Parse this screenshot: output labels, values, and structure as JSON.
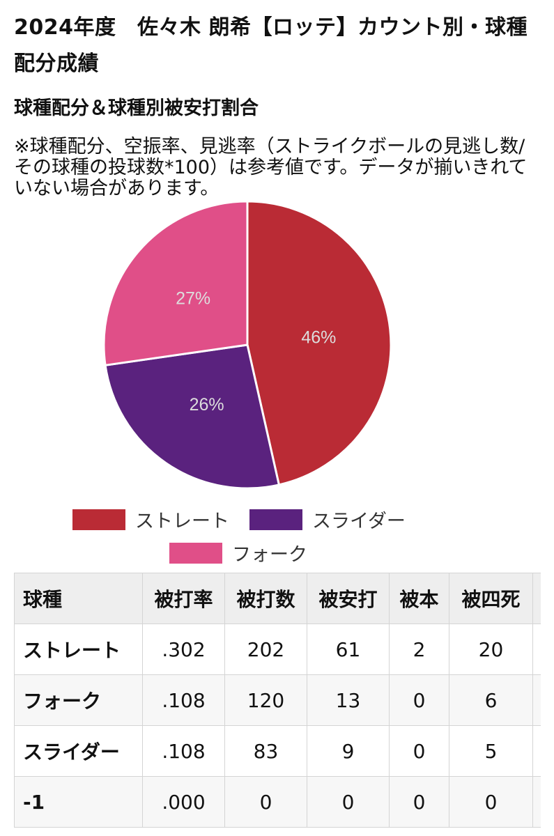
{
  "title": "2024年度　佐々木 朗希【ロッテ】カウント別・球種配分成績",
  "section_title": "球種配分＆球種別被安打割合",
  "note": "※球種配分、空振率、見逃率（ストライクボールの見逃し数/その球種の投球数*100）は参考値です。データが揃いきれていない場合があります。",
  "chart_data": {
    "type": "pie",
    "title": "",
    "slices": [
      {
        "name": "ストレート",
        "value": 46,
        "label": "46%",
        "color": "#BA2B35"
      },
      {
        "name": "スライダー",
        "value": 26,
        "label": "26%",
        "color": "#5A227E"
      },
      {
        "name": "フォーク",
        "value": 27,
        "label": "27%",
        "color": "#E04F88"
      }
    ],
    "legend_position": "bottom"
  },
  "legend": [
    {
      "label": "ストレート",
      "color": "#BA2B35"
    },
    {
      "label": "スライダー",
      "color": "#5A227E"
    },
    {
      "label": "フォーク",
      "color": "#E04F88"
    }
  ],
  "table": {
    "headers": [
      "球種",
      "被打率",
      "被打数",
      "被安打",
      "被本",
      "被四死"
    ],
    "rows": [
      [
        "ストレート",
        ".302",
        "202",
        "61",
        "2",
        "20"
      ],
      [
        "フォーク",
        ".108",
        "120",
        "13",
        "0",
        "6"
      ],
      [
        "スライダー",
        ".108",
        "83",
        "9",
        "0",
        "5"
      ],
      [
        "-1",
        ".000",
        "0",
        "0",
        "0",
        "0"
      ]
    ]
  }
}
